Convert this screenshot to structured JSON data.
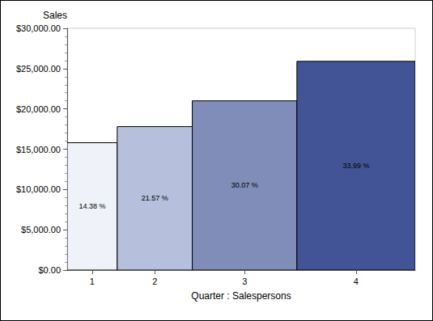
{
  "chart_data": {
    "type": "bar",
    "x_label": "Quarter : Salespersons",
    "y_label": "Sales",
    "categories": [
      "1",
      "2",
      "3",
      "4"
    ],
    "values": [
      15800,
      17800,
      21000,
      25900
    ],
    "widths": [
      14.38,
      21.57,
      30.07,
      33.99
    ],
    "width_labels": [
      "14.38 %",
      "21.57 %",
      "30.07 %",
      "33.99 %"
    ],
    "colors": [
      "#f0f2f9",
      "#b6bfdb",
      "#7f8db8",
      "#435496"
    ],
    "ylim": [
      0,
      30000
    ],
    "yticks": [
      {
        "value": 0,
        "label": "$0.00"
      },
      {
        "value": 5000,
        "label": "$5,000.00"
      },
      {
        "value": 10000,
        "label": "$10,000.00"
      },
      {
        "value": 15000,
        "label": "$15,000.00"
      },
      {
        "value": 20000,
        "label": "$20,000.00"
      },
      {
        "value": 25000,
        "label": "$25,000.00"
      },
      {
        "value": 30000,
        "label": "$30,000.00"
      }
    ],
    "grid": false
  }
}
